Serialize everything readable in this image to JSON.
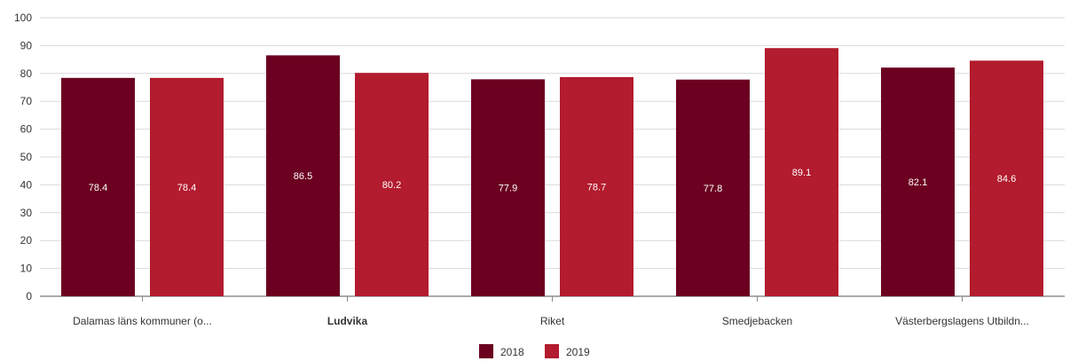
{
  "chart_data": {
    "type": "bar",
    "categories": [
      "Dalamas läns kommuner (o...",
      "Ludvika",
      "Riket",
      "Smedjebacken",
      "Västerbergslagens Utbildn..."
    ],
    "highlighted_category": "Ludvika",
    "series": [
      {
        "name": "2018",
        "color": "#6b0020",
        "values": [
          78.4,
          86.5,
          77.9,
          77.8,
          82.1
        ]
      },
      {
        "name": "2019",
        "color": "#b31b2e",
        "values": [
          78.4,
          80.2,
          78.7,
          89.1,
          84.6
        ]
      }
    ],
    "ylim": [
      0,
      100
    ],
    "yticks": [
      0,
      10,
      20,
      30,
      40,
      50,
      60,
      70,
      80,
      90,
      100
    ],
    "grid": true,
    "legend": "bottom-center"
  }
}
